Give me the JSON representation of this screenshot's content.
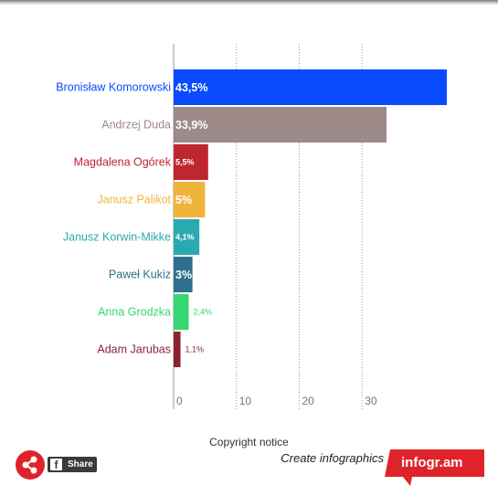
{
  "chart_data": {
    "type": "bar",
    "orientation": "horizontal",
    "categories": [
      "Bronisław Komorowski",
      "Andrzej Duda",
      "Magdalena Ogórek",
      "Janusz Palikot",
      "Janusz Korwin-Mikke",
      "Paweł Kukiz",
      "Anna Grodzka",
      "Adam Jarubas"
    ],
    "values": [
      43.5,
      33.9,
      5.5,
      5,
      4.1,
      3,
      2.4,
      1.1
    ],
    "value_labels": [
      "43,5%",
      "33,9%",
      "5,5%",
      "5%",
      "4,1%",
      "3%",
      "2,4%",
      "1,1%"
    ],
    "colors": [
      "#0a4bff",
      "#9e8a88",
      "#c0262e",
      "#f0b43c",
      "#2aaab0",
      "#2e6e8e",
      "#36d672",
      "#8a2433"
    ],
    "x_ticks": [
      "0",
      "10",
      "20",
      "30"
    ],
    "xlim": [
      0,
      43.5
    ],
    "grid": true
  },
  "footer": {
    "copyright": "Copyright notice",
    "share_label": "Share",
    "create_text": "Create infographics",
    "brand": "infogr.am"
  },
  "colors": {
    "accent": "#e0232a",
    "grid": "#999999"
  }
}
